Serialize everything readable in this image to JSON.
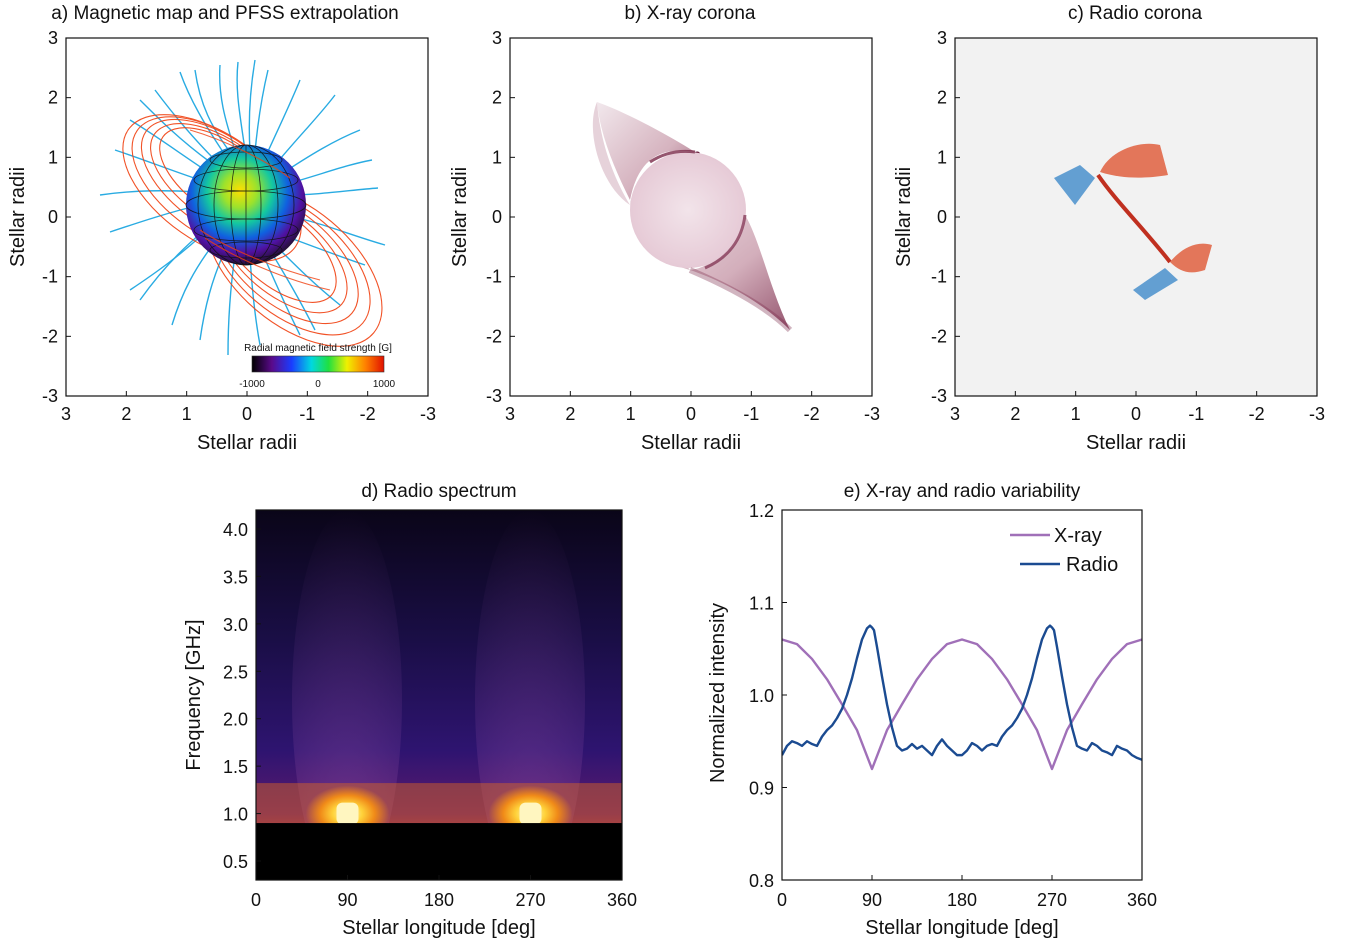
{
  "panels": {
    "a": {
      "title": "a) Magnetic map and PFSS extrapolation",
      "xlabel": "Stellar radii",
      "ylabel": "Stellar radii",
      "xticks": [
        "3",
        "2",
        "1",
        "0",
        "-1",
        "-2",
        "-3"
      ],
      "yticks": [
        "3",
        "2",
        "1",
        "0",
        "-1",
        "-2",
        "-3"
      ],
      "colorbar_label": "Radial magnetic field strength [G]",
      "colorbar_ticks": [
        "-1000",
        "0",
        "1000"
      ],
      "colors": {
        "open_field": "#1ea7e1",
        "closed_field": "#f04010"
      }
    },
    "b": {
      "title": "b) X-ray corona",
      "xlabel": "Stellar radii",
      "ylabel": "Stellar radii",
      "xticks": [
        "3",
        "2",
        "1",
        "0",
        "-1",
        "-2",
        "-3"
      ],
      "yticks": [
        "3",
        "2",
        "1",
        "0",
        "-1",
        "-2",
        "-3"
      ],
      "colors": {
        "emission": "#7a2a4a"
      }
    },
    "c": {
      "title": "c) Radio corona",
      "xlabel": "Stellar radii",
      "ylabel": "Stellar radii",
      "xticks": [
        "3",
        "2",
        "1",
        "0",
        "-1",
        "-2",
        "-3"
      ],
      "yticks": [
        "3",
        "2",
        "1",
        "0",
        "-1",
        "-2",
        "-3"
      ],
      "colors": {
        "background": "#f2f2f2",
        "positive": "#d9502e",
        "negative": "#3a86c4"
      }
    }
  },
  "chart_data": [
    {
      "type": "heatmap",
      "title": "d) Radio spectrum",
      "xlabel": "Stellar longitude [deg]",
      "ylabel": "Frequency [GHz]",
      "xlim": [
        0,
        360
      ],
      "ylim": [
        0.3,
        4.2
      ],
      "xticks": [
        0,
        90,
        180,
        270,
        360
      ],
      "yticks": [
        0.5,
        1.0,
        1.5,
        2.0,
        2.5,
        3.0,
        3.5,
        4.0
      ],
      "ytick_labels": [
        "0.5",
        "1.0",
        "1.5",
        "2.0",
        "2.5",
        "3.0",
        "3.5",
        "4.0"
      ],
      "peaks": [
        {
          "longitude": 90,
          "frequency": 1.0
        },
        {
          "longitude": 270,
          "frequency": 1.0
        }
      ],
      "cutoff_frequency": 0.9
    },
    {
      "type": "line",
      "title": "e) X-ray and radio variability",
      "xlabel": "Stellar longitude [deg]",
      "ylabel": "Normalized intensity",
      "xlim": [
        0,
        360
      ],
      "ylim": [
        0.8,
        1.2
      ],
      "xticks": [
        0,
        90,
        180,
        270,
        360
      ],
      "yticks": [
        0.8,
        0.9,
        1.0,
        1.1,
        1.2
      ],
      "ytick_labels": [
        "0.8",
        "0.9",
        "1.0",
        "1.1",
        "1.2"
      ],
      "legend": "top-right",
      "series": [
        {
          "name": "X-ray",
          "color": "#a070b8",
          "x": [
            0,
            15,
            30,
            45,
            60,
            75,
            90,
            105,
            120,
            135,
            150,
            165,
            180,
            195,
            210,
            225,
            240,
            255,
            270,
            285,
            300,
            315,
            330,
            345,
            360
          ],
          "y": [
            1.06,
            1.055,
            1.039,
            1.017,
            0.99,
            0.962,
            0.92,
            0.962,
            0.99,
            1.017,
            1.039,
            1.055,
            1.06,
            1.055,
            1.039,
            1.017,
            0.99,
            0.962,
            0.92,
            0.962,
            0.99,
            1.017,
            1.039,
            1.055,
            1.06
          ]
        },
        {
          "name": "Radio",
          "color": "#1b4b91",
          "x": [
            0,
            5,
            10,
            15,
            20,
            25,
            30,
            35,
            40,
            45,
            50,
            55,
            60,
            65,
            70,
            75,
            80,
            85,
            88,
            90,
            92,
            95,
            100,
            105,
            110,
            115,
            120,
            125,
            130,
            135,
            140,
            145,
            150,
            155,
            160,
            165,
            170,
            175,
            180,
            185,
            190,
            195,
            200,
            205,
            210,
            215,
            220,
            225,
            230,
            235,
            240,
            245,
            250,
            255,
            260,
            265,
            268,
            270,
            272,
            275,
            280,
            285,
            290,
            295,
            300,
            305,
            310,
            315,
            320,
            325,
            330,
            335,
            340,
            345,
            350,
            355,
            360
          ],
          "y": [
            0.935,
            0.945,
            0.95,
            0.948,
            0.945,
            0.95,
            0.947,
            0.945,
            0.955,
            0.962,
            0.967,
            0.975,
            0.985,
            1.0,
            1.018,
            1.04,
            1.06,
            1.072,
            1.075,
            1.073,
            1.07,
            1.052,
            1.02,
            0.99,
            0.965,
            0.945,
            0.94,
            0.942,
            0.947,
            0.942,
            0.945,
            0.94,
            0.935,
            0.945,
            0.952,
            0.945,
            0.94,
            0.935,
            0.935,
            0.94,
            0.948,
            0.945,
            0.94,
            0.945,
            0.947,
            0.945,
            0.955,
            0.962,
            0.967,
            0.975,
            0.985,
            1.0,
            1.018,
            1.04,
            1.06,
            1.072,
            1.075,
            1.073,
            1.07,
            1.052,
            1.02,
            0.99,
            0.965,
            0.945,
            0.942,
            0.94,
            0.948,
            0.945,
            0.94,
            0.938,
            0.935,
            0.945,
            0.942,
            0.94,
            0.935,
            0.932,
            0.93
          ]
        }
      ]
    }
  ]
}
